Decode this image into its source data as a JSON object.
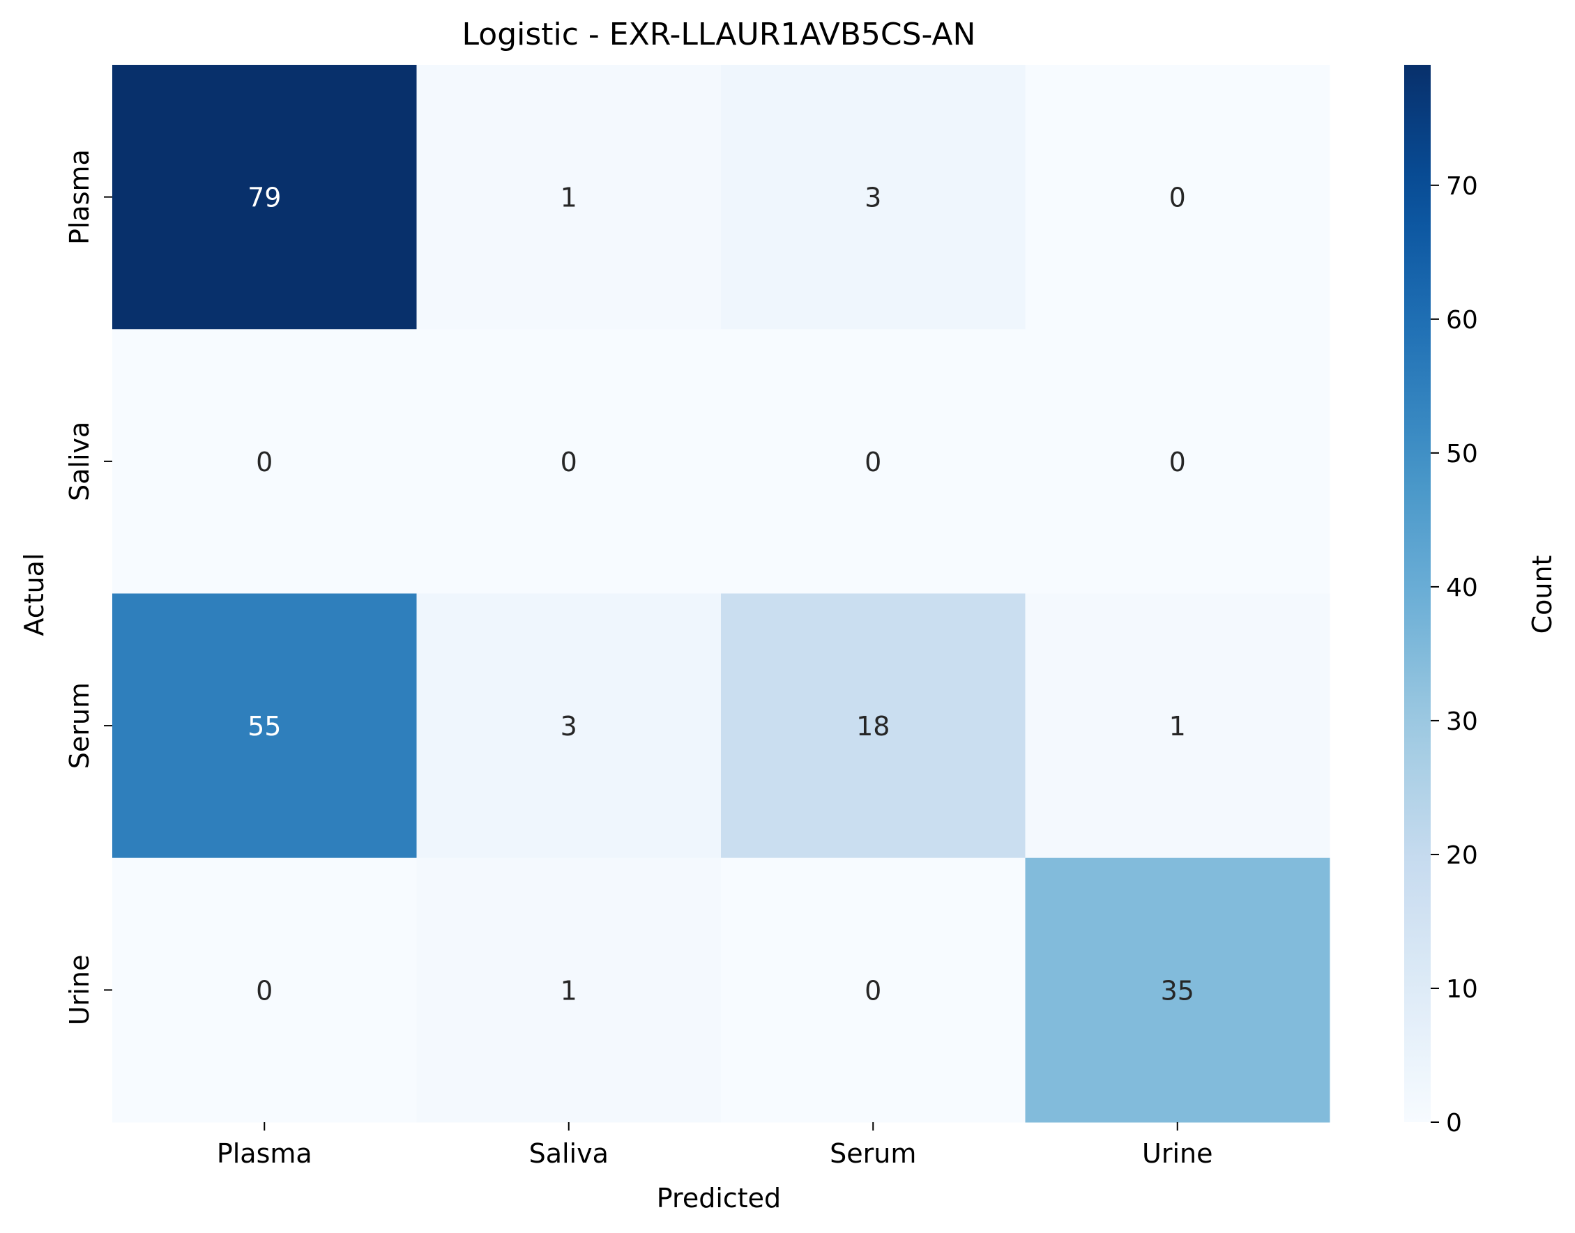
{
  "chart_data": {
    "type": "heatmap",
    "title": "Logistic - EXR-LLAUR1AVB5CS-AN",
    "xlabel": "Predicted",
    "ylabel": "Actual",
    "x_categories": [
      "Plasma",
      "Saliva",
      "Serum",
      "Urine"
    ],
    "y_categories": [
      "Plasma",
      "Saliva",
      "Serum",
      "Urine"
    ],
    "values": [
      [
        79,
        1,
        3,
        0
      ],
      [
        0,
        0,
        0,
        0
      ],
      [
        55,
        3,
        18,
        1
      ],
      [
        0,
        1,
        0,
        35
      ]
    ],
    "colorbar": {
      "label": "Count",
      "range": [
        0,
        79
      ],
      "ticks": [
        0,
        10,
        20,
        30,
        40,
        50,
        60,
        70
      ]
    },
    "colormap": "Blues",
    "grid": false
  }
}
